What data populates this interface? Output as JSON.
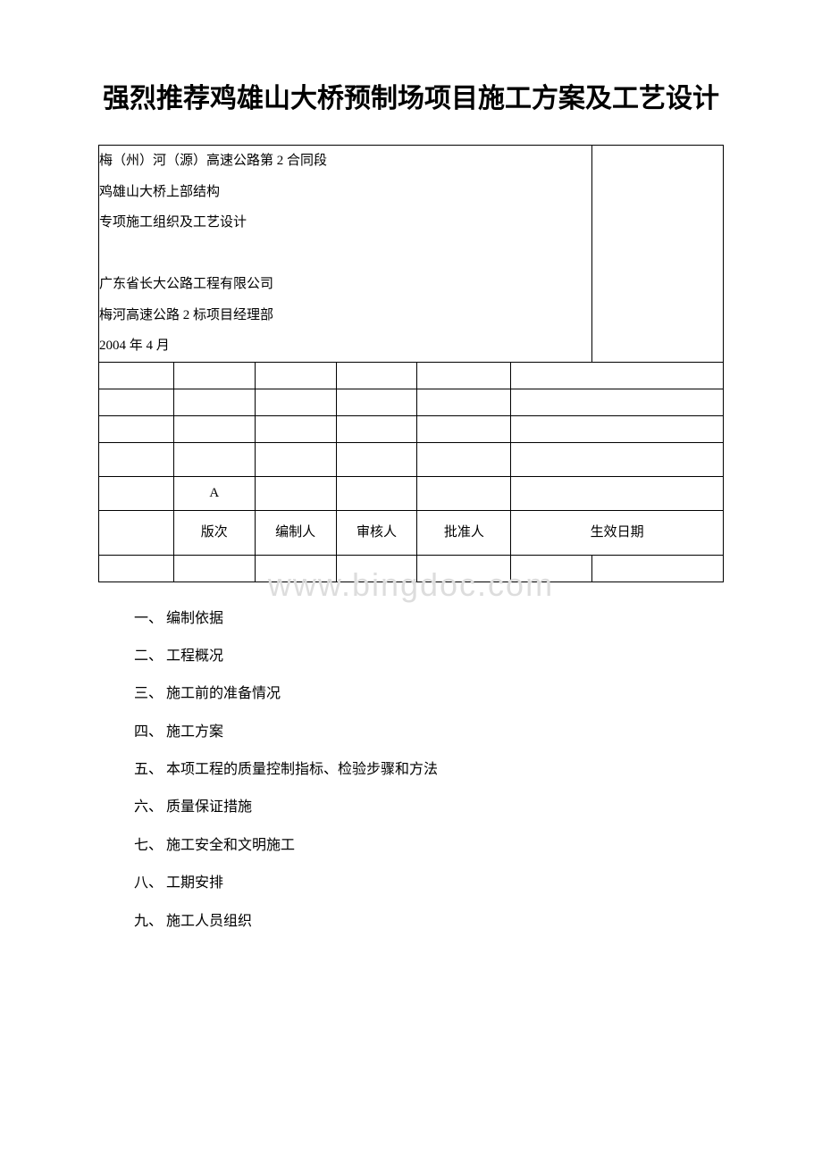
{
  "title": "强烈推荐鸡雄山大桥预制场项目施工方案及工艺设计",
  "info_block": {
    "line1": "梅（州）河（源）高速公路第 2 合同段",
    "line2": "鸡雄山大桥上部结构",
    "line3": "专项施工组织及工艺设计",
    "line4": "",
    "line5": "广东省长大公路工程有限公司",
    "line6": "梅河高速公路 2 标项目经理部",
    "line7": "2004 年 4 月"
  },
  "watermark": "www.bingdoc.com",
  "version_label": "A",
  "table_headers": {
    "col2": "版次",
    "col3": "编制人",
    "col4": "审核人",
    "col5": "批准人",
    "col67": "生效日期"
  },
  "outline": [
    "一、 编制依据",
    "二、 工程概况",
    "三、 施工前的准备情况",
    "四、 施工方案",
    "五、 本项工程的质量控制指标、检验步骤和方法",
    "六、 质量保证措施",
    "七、 施工安全和文明施工",
    "八、 工期安排",
    "九、 施工人员组织"
  ],
  "colors": {
    "background": "#ffffff",
    "text": "#000000",
    "border": "#000000",
    "watermark": "#dddddd"
  }
}
